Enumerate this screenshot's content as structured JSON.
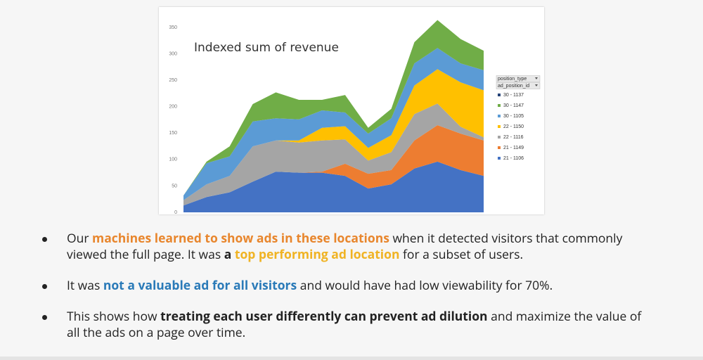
{
  "chart_data": {
    "type": "stacked_area",
    "title": "Indexed sum of revenue",
    "ylim": [
      0,
      350
    ],
    "yticks": [
      0,
      50,
      100,
      150,
      200,
      250,
      300,
      350
    ],
    "legend_headers": [
      "position_type",
      "ad_position_id"
    ],
    "series": [
      {
        "name": "21 - 1106",
        "color": "#4472c4",
        "values": [
          13,
          29,
          38,
          58,
          77,
          75,
          75,
          69,
          45,
          53,
          83,
          96,
          80,
          69
        ]
      },
      {
        "name": "21 - 1149",
        "color": "#ed7d31",
        "values": [
          0,
          0,
          0,
          0,
          0,
          0,
          2,
          23,
          28,
          27,
          53,
          69,
          69,
          67
        ]
      },
      {
        "name": "22 - 1116",
        "color": "#a5a5a5",
        "values": [
          10,
          24,
          31,
          67,
          59,
          57,
          59,
          46,
          25,
          34,
          50,
          41,
          13,
          6
        ]
      },
      {
        "name": "22 - 1150",
        "color": "#ffc000",
        "values": [
          0,
          0,
          0,
          0,
          0,
          4,
          24,
          25,
          24,
          32,
          54,
          65,
          84,
          89
        ]
      },
      {
        "name": "30 - 1105",
        "color": "#5b9bd5",
        "values": [
          9,
          40,
          37,
          47,
          42,
          40,
          33,
          26,
          27,
          32,
          42,
          40,
          36,
          38
        ]
      },
      {
        "name": "30 - 1147",
        "color": "#70ad47",
        "values": [
          0,
          3,
          19,
          33,
          49,
          37,
          20,
          33,
          11,
          18,
          40,
          53,
          46,
          37
        ]
      },
      {
        "name": "30 - 1137",
        "color": "#264478",
        "values": [
          0,
          0,
          0,
          0,
          0,
          0,
          0,
          0,
          0,
          0,
          0,
          0,
          0,
          0
        ]
      }
    ]
  },
  "bullets": [
    [
      "Our ",
      "machines learned to show ads in these locations",
      " when it detected visitors that commonly viewed the full page.  It was ",
      "a",
      " ",
      "top performing ad location",
      " for a subset of users."
    ],
    [
      "It was ",
      "not a valuable ad for all visitors",
      " and would have had low viewability for 70%."
    ],
    [
      "This shows how ",
      "treating each user differently can prevent ad dilution",
      " and maximize the value of all the ads on a page over time."
    ]
  ]
}
